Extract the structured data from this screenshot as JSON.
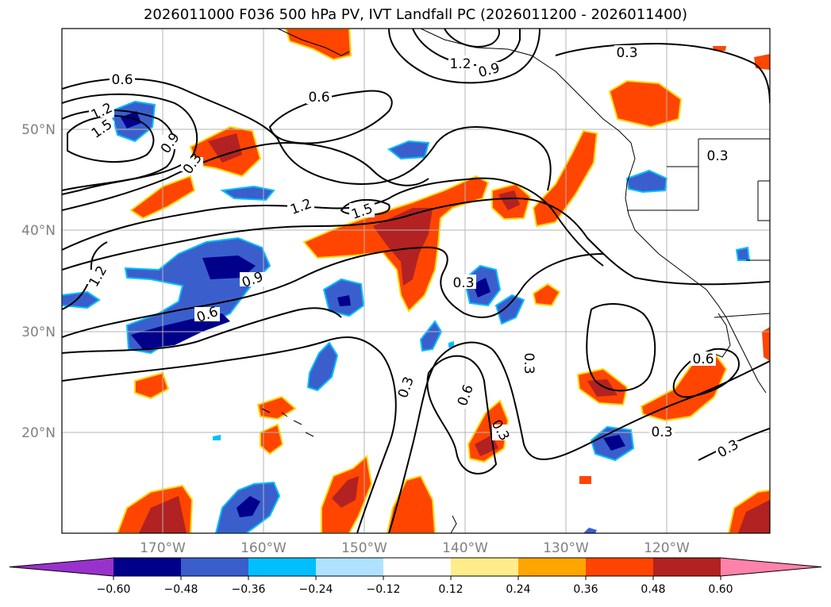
{
  "title": "2026011000 F036 500 hPa PV, IVT Landfall PC (2026011200 - 2026011400)",
  "axes": {
    "lon_labels": [
      "170°W",
      "160°W",
      "150°W",
      "140°W",
      "130°W",
      "120°W"
    ],
    "lat_labels": [
      "50°N",
      "40°N",
      "30°N",
      "20°N"
    ]
  },
  "colorbar": {
    "ticks": [
      "−0.60",
      "−0.48",
      "−0.36",
      "−0.24",
      "−0.12",
      "0.12",
      "0.24",
      "0.36",
      "0.48",
      "0.60"
    ],
    "colors": [
      "#9932cc",
      "#00008b",
      "#3a5fcd",
      "#00bfff",
      "#b0e2ff",
      "#ffffff",
      "#ffec8b",
      "#ffa500",
      "#ff4500",
      "#b22222",
      "#ff82ab"
    ]
  },
  "contour_labels": [
    "0.6",
    "1.2",
    "1.5",
    "0.9",
    "0.3",
    "0.6",
    "1.2",
    "0.9",
    "0.3",
    "0.3",
    "1.2",
    "1.5",
    "1.2",
    "0.9",
    "0.6",
    "0.3",
    "0.3",
    "0.6",
    "0.3",
    "0.6",
    "0.3",
    "0.3",
    "0.3"
  ],
  "colors": {
    "contour": "#000000",
    "grid": "#b4b4b4",
    "coast": "#000000"
  }
}
